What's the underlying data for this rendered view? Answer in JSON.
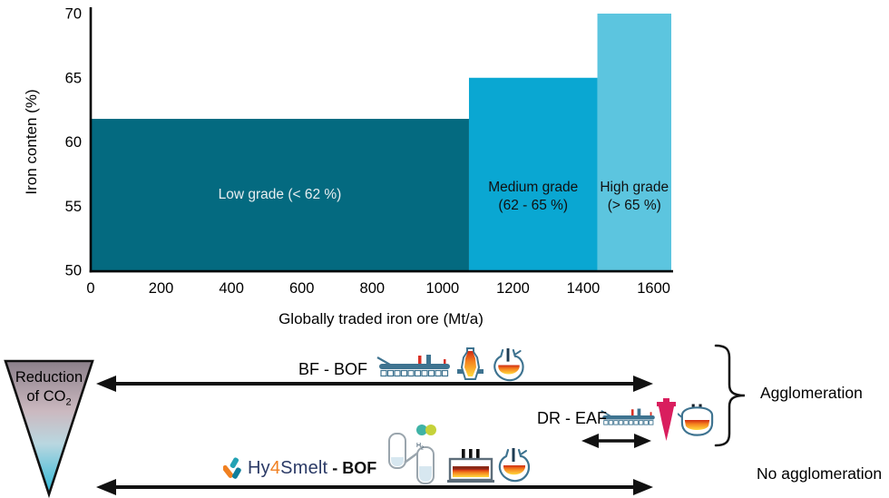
{
  "chart_data": {
    "type": "bar",
    "title": "",
    "xlabel": "Globally traded iron ore (Mt/a)",
    "ylabel": "Iron conten (%)",
    "xlim": [
      0,
      1650
    ],
    "ylim": [
      50,
      70
    ],
    "x_ticks": [
      0,
      200,
      400,
      600,
      800,
      1000,
      1200,
      1400,
      1600
    ],
    "y_ticks": [
      50,
      55,
      60,
      65,
      70
    ],
    "grid": false,
    "legend": null,
    "bars": [
      {
        "name": "low-grade",
        "label_lines": [
          "Low grade (< 62 %)"
        ],
        "x_start": 0,
        "x_end": 1075,
        "iron_content_pct": 61.8,
        "color": "#046a80",
        "label_color": "#e9eef0"
      },
      {
        "name": "medium-grade",
        "label_lines": [
          "Medium grade",
          "(62 - 65 %)"
        ],
        "x_start": 1075,
        "x_end": 1440,
        "iron_content_pct": 65,
        "color": "#0aa7d2",
        "label_color": "#101010"
      },
      {
        "name": "high-grade",
        "label_lines": [
          "High grade",
          "(> 65 %)"
        ],
        "x_start": 1440,
        "x_end": 1650,
        "iron_content_pct": 70,
        "color": "#5cc5df",
        "label_color": "#101010"
      }
    ]
  },
  "diagram": {
    "triangle": {
      "line1": "Reduction",
      "line2": "of CO",
      "subscript": "2",
      "gradient": [
        "#8b7f8a",
        "#cbb9c0",
        "#b9d7e0",
        "#3fbcd8"
      ]
    },
    "routes": [
      {
        "name": "bf-bof",
        "label": "BF - BOF",
        "icons": [
          "sinter-plant",
          "blast-furnace",
          "bof-converter"
        ],
        "agglomeration": true
      },
      {
        "name": "dr-eaf",
        "label": "DR - EAF",
        "icons": [
          "pellet-plant",
          "dr-shaft",
          "eaf-furnace"
        ],
        "agglomeration": true
      },
      {
        "name": "hy4smelt-bof",
        "logo_parts": [
          "Hy",
          "4",
          "Smelt"
        ],
        "suffix": "- BOF",
        "icons": [
          "h2-shaft-reactors",
          "smelter",
          "bof-converter"
        ],
        "agglomeration": false
      }
    ],
    "h2_molecule_label": {
      "symbol": "H",
      "subscript": "2"
    },
    "group_labels": {
      "agglomeration": "Agglomeration",
      "no_agglomeration": "No agglomeration"
    },
    "colors": {
      "arrow": "#111111",
      "icon_outline_teal": "#3e7390",
      "dr_shaft_magenta": "#d91e5e",
      "logo_orange": "#f08021",
      "logo_teal": "#23a2b4",
      "logo_navy": "#2b3a66"
    }
  }
}
